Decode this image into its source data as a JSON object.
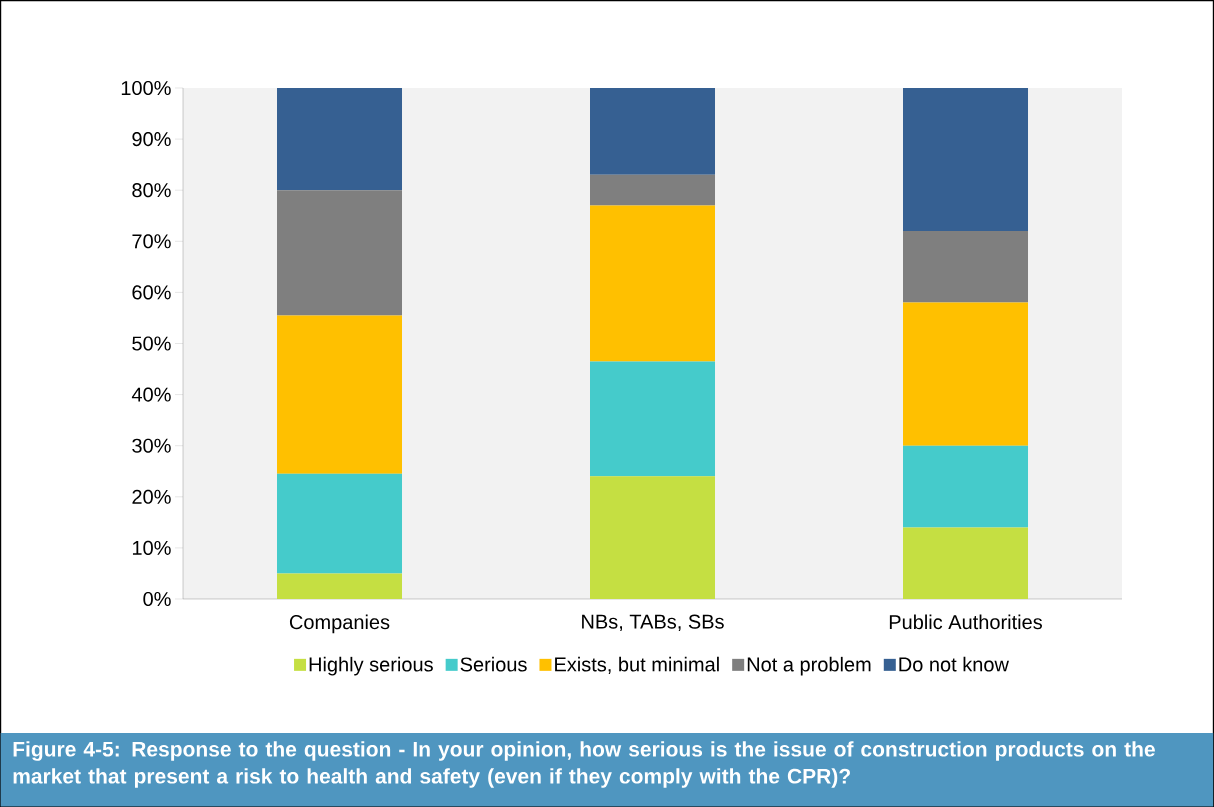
{
  "chart_data": {
    "type": "bar",
    "stacked": true,
    "title": "Figure 4-5: Response to the question - In your opinion, how serious is the issue of construction products on the market that present a risk to health and safety (even if they comply with the CPR)?",
    "categories": [
      "Companies",
      "NBs, TABs, SBs",
      "Public Authorities"
    ],
    "series": [
      {
        "name": "Highly serious",
        "color": "#c5df42",
        "values": [
          5,
          24,
          14
        ]
      },
      {
        "name": "Serious",
        "color": "#45cbcb",
        "values": [
          19.5,
          22.5,
          16
        ]
      },
      {
        "name": "Exists, but minimal",
        "color": "#ffc000",
        "values": [
          31,
          30.5,
          28
        ]
      },
      {
        "name": "Not a problem",
        "color": "#7f7f7f",
        "values": [
          24.5,
          6,
          14
        ]
      },
      {
        "name": "Do not know",
        "color": "#366092",
        "values": [
          20,
          17,
          28
        ]
      }
    ],
    "ylim": [
      0,
      100
    ],
    "yticks": [
      {
        "value": 0,
        "label": "0%"
      },
      {
        "value": 10,
        "label": "10%"
      },
      {
        "value": 20,
        "label": "20%"
      },
      {
        "value": 30,
        "label": "30%"
      },
      {
        "value": 40,
        "label": "40%"
      },
      {
        "value": 50,
        "label": "50%"
      },
      {
        "value": 60,
        "label": "60%"
      },
      {
        "value": 70,
        "label": "70%"
      },
      {
        "value": 80,
        "label": "80%"
      },
      {
        "value": 90,
        "label": "90%"
      },
      {
        "value": 100,
        "label": "100%"
      }
    ],
    "legend": "bottom",
    "grid": false
  }
}
